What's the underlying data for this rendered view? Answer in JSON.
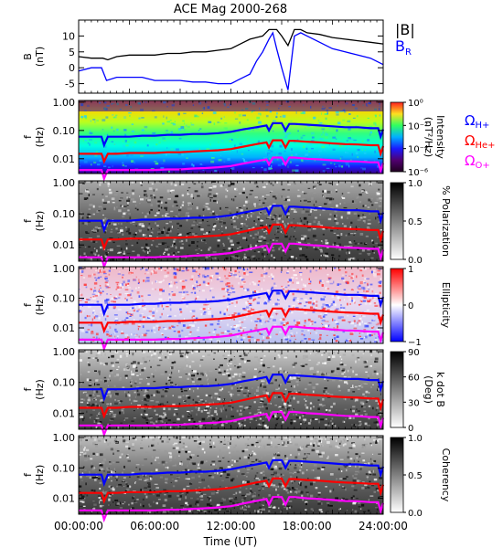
{
  "chart_data": [
    {
      "type": "line",
      "title": "ACE Mag 2000-268",
      "ylabel": "B\n(nT)",
      "ylim": [
        -8,
        15
      ],
      "yticks": [
        -5,
        0,
        5,
        10
      ],
      "legend": [
        {
          "label": "|B|",
          "color": "#000000"
        },
        {
          "label": "B",
          "sub": "R",
          "color": "#0000ff"
        }
      ],
      "series": [
        {
          "name": "|B|",
          "color": "#000000",
          "x": [
            0,
            1,
            1.9,
            2.3,
            3,
            4,
            5,
            6,
            7,
            8,
            9,
            10,
            11,
            12,
            12.5,
            13,
            13.5,
            14,
            14.5,
            15,
            15.3,
            15.6,
            16,
            16.5,
            17,
            17.5,
            18,
            19,
            20,
            21,
            22,
            23,
            24
          ],
          "y": [
            3.5,
            3,
            3,
            2.5,
            3.5,
            4,
            4,
            4,
            4.5,
            4.5,
            5,
            5,
            5.5,
            6,
            7,
            8,
            9,
            9.5,
            10,
            12,
            12,
            12,
            10,
            7,
            12,
            12,
            11,
            10.5,
            9.5,
            9,
            8.5,
            8,
            7.5
          ]
        },
        {
          "name": "B_R",
          "color": "#0000ff",
          "x": [
            0,
            1,
            1.8,
            2.2,
            3,
            4,
            5,
            6,
            7,
            8,
            9,
            10,
            11,
            12,
            12.5,
            13,
            13.5,
            14,
            14.5,
            15,
            15.3,
            15.6,
            16,
            16.5,
            17,
            17.5,
            18,
            19,
            20,
            21,
            22,
            23,
            24
          ],
          "y": [
            -1,
            0,
            0,
            -4,
            -3,
            -3,
            -3,
            -4,
            -4,
            -4,
            -4.5,
            -4.5,
            -5,
            -5,
            -4,
            -3,
            -2,
            2,
            5,
            9,
            11,
            6,
            0,
            -7,
            10,
            11,
            10,
            8,
            6,
            5,
            4,
            3,
            1
          ]
        }
      ]
    },
    {
      "type": "heatmap",
      "ylabel": "f\n(Hz)",
      "yticks": [
        "1.00",
        "0.10",
        "0.01"
      ],
      "colorbar": {
        "label": "Intensity\n(nT²/Hz)",
        "ticks": [
          "10⁰",
          "10⁻²",
          "10⁻⁴",
          "10⁻⁶"
        ],
        "colors": [
          "#ff2020",
          "#ffe020",
          "#30ff60",
          "#00b0ff",
          "#1a1aff",
          "#500070",
          "#200020"
        ]
      },
      "legend": [
        {
          "label": "Ω",
          "sub": "H+",
          "color": "#0000ff"
        },
        {
          "label": "Ω",
          "sub": "He+",
          "color": "#ff0000"
        },
        {
          "label": "Ω",
          "sub": "O+",
          "color": "#ff00ff"
        }
      ]
    },
    {
      "type": "heatmap",
      "ylabel": "f\n(Hz)",
      "yticks": [
        "1.00",
        "0.10",
        "0.01"
      ],
      "colorbar": {
        "label": "% Polarization",
        "ticks": [
          "1.0",
          "0.5",
          "0.0"
        ],
        "colors": [
          "#000000",
          "#808080",
          "#ffffff"
        ]
      }
    },
    {
      "type": "heatmap",
      "ylabel": "f\n(Hz)",
      "yticks": [
        "1.00",
        "0.10",
        "0.01"
      ],
      "colorbar": {
        "label": "Ellipticity",
        "ticks": [
          "1",
          "0",
          "−1"
        ],
        "colors": [
          "#ff0000",
          "#ffffff",
          "#0000ff"
        ]
      }
    },
    {
      "type": "heatmap",
      "ylabel": "f\n(Hz)",
      "yticks": [
        "1.00",
        "0.10",
        "0.01"
      ],
      "colorbar": {
        "label": "k dot B\n(Deg)",
        "ticks": [
          "90",
          "60",
          "30",
          "0"
        ],
        "colors": [
          "#000000",
          "#808080",
          "#ffffff"
        ]
      }
    },
    {
      "type": "heatmap",
      "ylabel": "f\n(Hz)",
      "yticks": [
        "1.00",
        "0.10",
        "0.01"
      ],
      "colorbar": {
        "label": "Coherency",
        "ticks": [
          "1.0",
          "0.5",
          "0.0"
        ],
        "colors": [
          "#000000",
          "#808080",
          "#ffffff"
        ]
      }
    }
  ],
  "gyro_lines": {
    "x": [
      0,
      1,
      1.8,
      2.0,
      2.3,
      3,
      4,
      5,
      6,
      7,
      8,
      9,
      10,
      11,
      12,
      13,
      14,
      14.8,
      15.0,
      15.3,
      16.0,
      16.3,
      16.6,
      17,
      18,
      19,
      20,
      21,
      22,
      23,
      23.6,
      23.8,
      24
    ],
    "H+": [
      0.06,
      0.06,
      0.06,
      0.03,
      0.06,
      0.06,
      0.06,
      0.065,
      0.065,
      0.07,
      0.07,
      0.075,
      0.075,
      0.08,
      0.09,
      0.11,
      0.13,
      0.15,
      0.1,
      0.18,
      0.18,
      0.1,
      0.17,
      0.17,
      0.16,
      0.15,
      0.14,
      0.13,
      0.13,
      0.12,
      0.12,
      0.06,
      0.11
    ],
    "He+": [
      0.015,
      0.015,
      0.015,
      0.008,
      0.015,
      0.015,
      0.016,
      0.016,
      0.016,
      0.017,
      0.017,
      0.018,
      0.019,
      0.02,
      0.022,
      0.027,
      0.033,
      0.038,
      0.025,
      0.045,
      0.045,
      0.025,
      0.043,
      0.043,
      0.04,
      0.038,
      0.035,
      0.033,
      0.032,
      0.03,
      0.03,
      0.015,
      0.028
    ],
    "O+": [
      0.004,
      0.004,
      0.004,
      0.002,
      0.004,
      0.004,
      0.004,
      0.004,
      0.004,
      0.0042,
      0.0042,
      0.0045,
      0.0047,
      0.005,
      0.0055,
      0.0068,
      0.0082,
      0.0095,
      0.0062,
      0.011,
      0.011,
      0.0062,
      0.011,
      0.011,
      0.01,
      0.0095,
      0.0088,
      0.0082,
      0.008,
      0.0075,
      0.0075,
      0.0038,
      0.007
    ]
  },
  "x_axis": {
    "label": "Time (UT)",
    "ticks": [
      "00:00:00",
      "06:00:00",
      "12:00:00",
      "18:00:00",
      "24:00:00"
    ],
    "range": [
      0,
      24
    ]
  },
  "colors": {
    "Bmag": "#000000",
    "BR": "#0000ff",
    "H+": "#0000ff",
    "He+": "#ff0000",
    "O+": "#ff00ff"
  }
}
